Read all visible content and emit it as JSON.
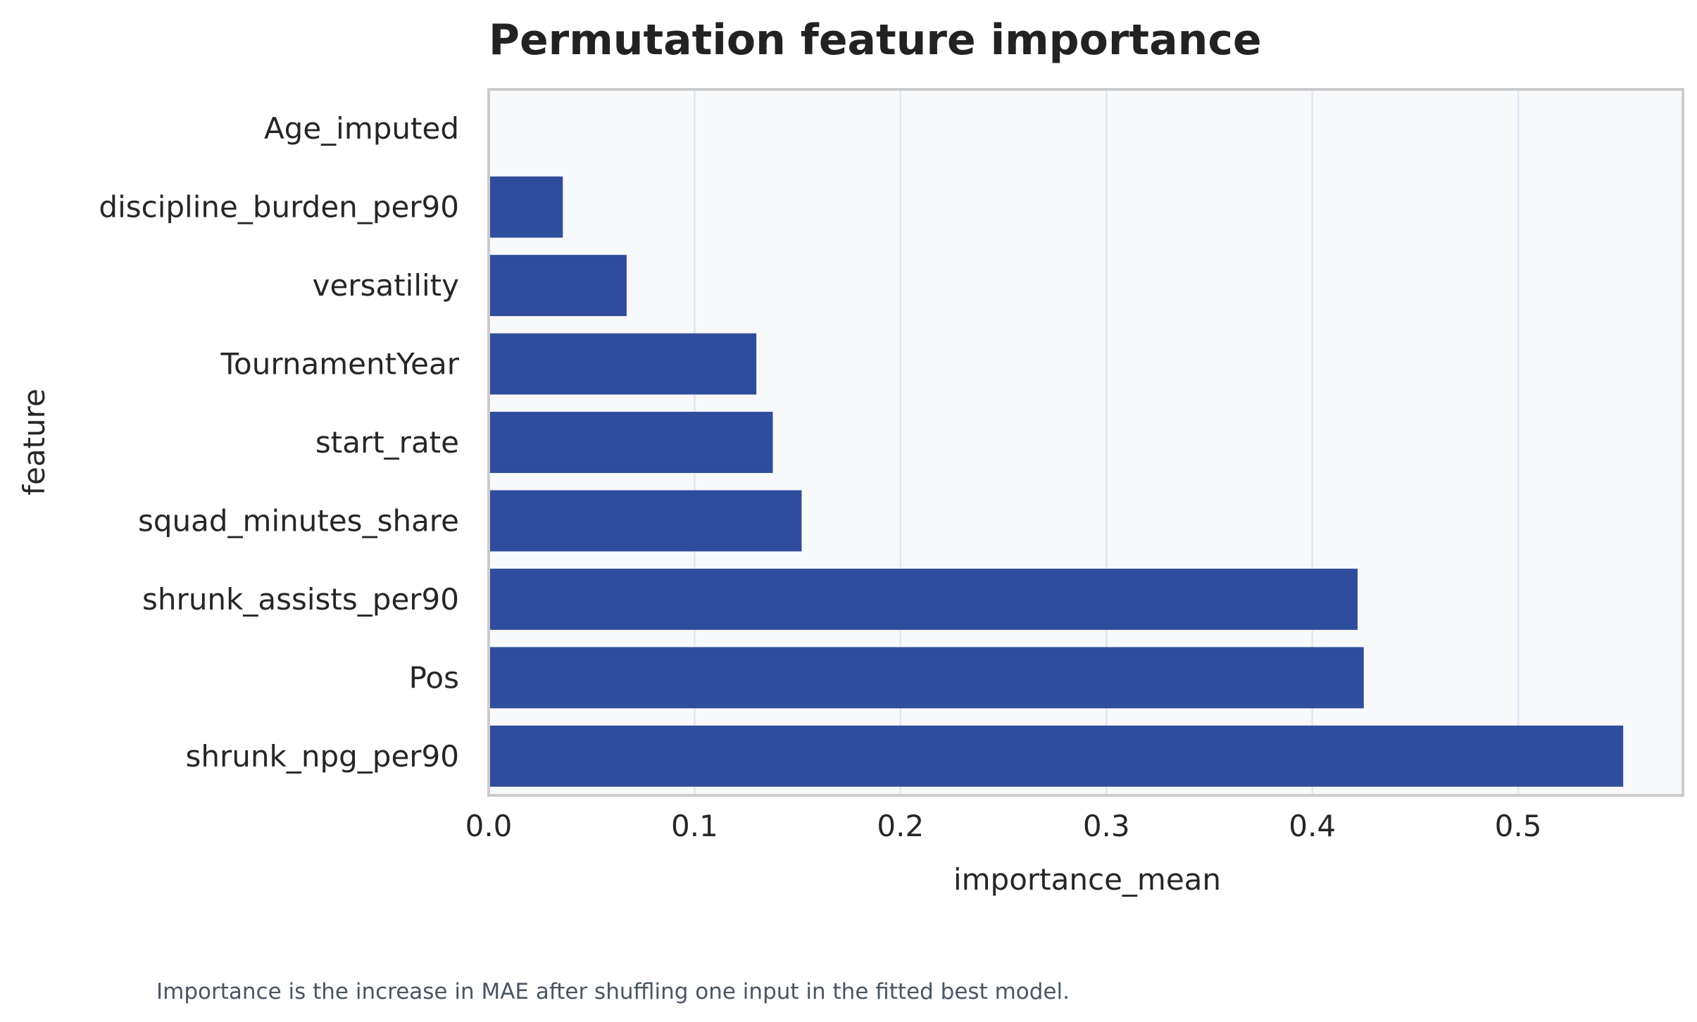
{
  "chart_data": {
    "type": "bar",
    "orientation": "horizontal",
    "title": "Permutation feature importance",
    "xlabel": "importance_mean",
    "ylabel": "feature",
    "categories": [
      "Age_imputed",
      "discipline_burden_per90",
      "versatility",
      "TournamentYear",
      "start_rate",
      "squad_minutes_share",
      "shrunk_assists_per90",
      "Pos",
      "shrunk_npg_per90"
    ],
    "values": [
      0.0,
      0.036,
      0.067,
      0.13,
      0.138,
      0.152,
      0.422,
      0.425,
      0.551
    ],
    "xlim": [
      0.0,
      0.58
    ],
    "x_ticks": [
      0.0,
      0.1,
      0.2,
      0.3,
      0.4,
      0.5
    ],
    "x_tick_labels": [
      "0.0",
      "0.1",
      "0.2",
      "0.3",
      "0.4",
      "0.5"
    ],
    "grid": "vertical",
    "bar_color": "#304c9c",
    "plot_background": "#f8f9fb",
    "grid_color": "#dde8f3",
    "frame_color": "#cccccc"
  },
  "caption": "Importance is the increase in MAE after shuffling one input in the fitted best model."
}
